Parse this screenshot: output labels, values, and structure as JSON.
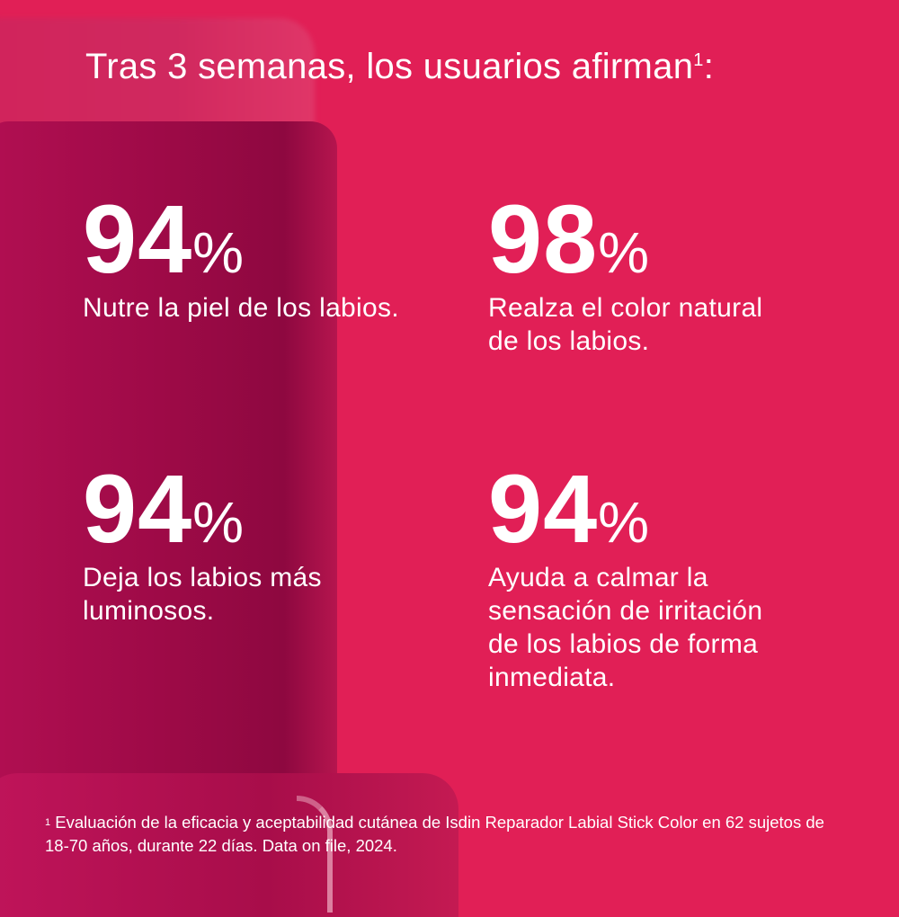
{
  "title": "Tras 3 semanas, los usuarios afirman",
  "title_footnote_mark": "1",
  "stats": [
    {
      "value": "94",
      "unit": "%",
      "text": "Nutre la piel de los labios."
    },
    {
      "value": "98",
      "unit": "%",
      "text": "Realza el color natural de los labios."
    },
    {
      "value": "94",
      "unit": "%",
      "text": "Deja los labios más luminosos."
    },
    {
      "value": "94",
      "unit": "%",
      "text": "Ayuda a calmar la sensación de irritación de los labios de forma inmediata."
    }
  ],
  "footnote": {
    "mark": "1",
    "text": "Evaluación de la eficacia y aceptabilidad cutánea de Isdin Reparador Labial Stick Color en 62 sujetos de 18-70 años, durante 22 días. Data on file, 2024."
  },
  "colors": {
    "background": "#e11f56",
    "product": "#9e0a47",
    "text": "#ffffff"
  }
}
